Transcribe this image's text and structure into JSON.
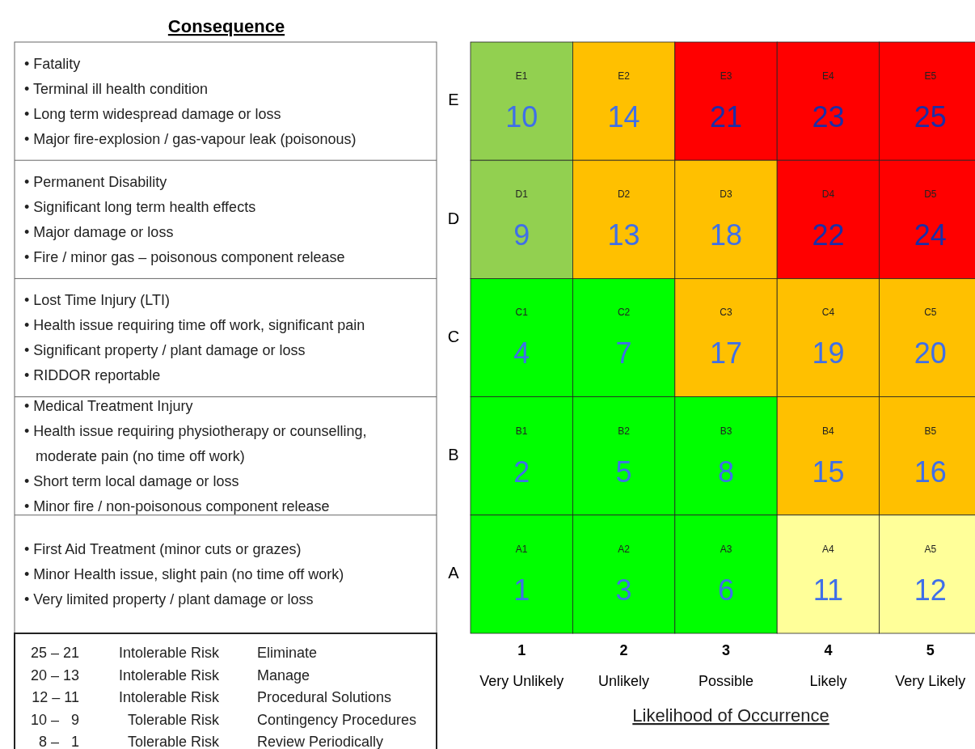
{
  "chart_data": {
    "type": "heatmap",
    "title": "Consequence",
    "data_labels": true,
    "xlabel": "Likelihood of Occurrence",
    "categories": [
      "1\nVery Unlikely",
      "2\nUnlikely",
      "3\nPossible",
      "4\nLikely",
      "5\nVery Likely"
    ],
    "y_categories": [
      "E",
      "D",
      "C",
      "B",
      "A"
    ],
    "y2_categories": [
      "• Fatality\n• Terminal ill health condition\n• Long term widespread damage or loss\n• Major fire-explosion / gas-vapour leak (poisonous)",
      "• Permanent Disability\n• Significant long term health effects\n• Major damage or loss\n• Fire / minor gas – poisonous component release",
      "• Lost Time Injury (LTI)\n• Health issue requiring time off work, significant pain\n• Significant property / plant damage or loss\n• RIDDOR reportable",
      "• Medical Treatment Injury\n• Health issue requiring physiotherapy or counselling,\tmoderate pain (no time off work)\n• Short term local damage or loss\n• Minor fire / non-poisonous component release",
      "• First Aid Treatment (minor cuts or grazes)\n• Minor Health issue, slight pain (no time off work)\n• Very limited property / plant damage or loss"
    ],
    "cells": [
      [
        10,
        14,
        21,
        23,
        25
      ],
      [
        9,
        13,
        18,
        22,
        24
      ],
      [
        4,
        7,
        17,
        19,
        20
      ],
      [
        2,
        5,
        8,
        15,
        16
      ],
      [
        1,
        3,
        6,
        11,
        12
      ]
    ],
    "colors": [
      [
        "#92d050",
        "#ffc000",
        "#ff0000",
        "#ff0000",
        "#ff0000"
      ],
      [
        "#92d050",
        "#ffc000",
        "#ffc000",
        "#ff0000",
        "#ff0000"
      ],
      [
        "#00ff00",
        "#00ff00",
        "#ffc000",
        "#ffc000",
        "#ffc000"
      ],
      [
        "#00ff00",
        "#00ff00",
        "#00ff00",
        "#ffc000",
        "#ffc000"
      ],
      [
        "#00ff00",
        "#00ff00",
        "#00ff00",
        "#ffff99",
        "#ffff99"
      ]
    ],
    "annotations": [
      "25 – 21\tIntolerable Risk\tEliminate",
      "20 – 13\tIntolerable Risk\tManage",
      "12 – 11\tIntolerable Risk\tProcedural Solutions",
      "10 –   9\tTolerable Risk\tContingency Procedures",
      "8 –   1\tTolerable Risk\tReview Periodically",
      "E1",
      "E2",
      "E3",
      "E4",
      "E5",
      "D1",
      "D2",
      "D3",
      "D4",
      "D5",
      "C1",
      "C2",
      "C3",
      "C4",
      "C5",
      "B1",
      "B2",
      "B3",
      "B4",
      "B5",
      "A1",
      "A2",
      "A3",
      "A4",
      "A5"
    ]
  }
}
